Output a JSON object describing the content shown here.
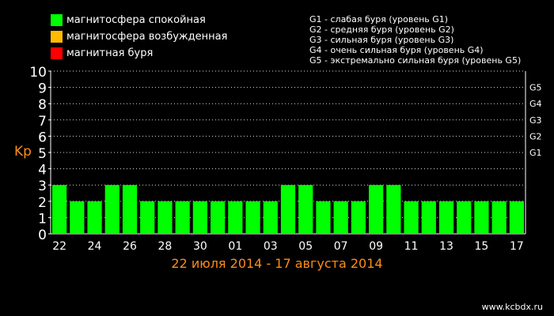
{
  "legend": {
    "items": [
      {
        "label": "магнитосфера спокойная",
        "color": "#00ff00"
      },
      {
        "label": "магнитосфера возбужденная",
        "color": "#ffbb00"
      },
      {
        "label": "магнитная буря",
        "color": "#ff0000"
      }
    ]
  },
  "storm_levels": [
    "G1 - слабая буря (уровень G1)",
    "G2 - средняя буря (уровень G2)",
    "G3 - сильная буря (уровень G3)",
    "G4 - очень сильная буря (уровень G4)",
    "G5 - экстремально сильная буря (уровень G5)"
  ],
  "watermark": "www.kcbdx.ru",
  "chart_data": {
    "type": "bar",
    "ylabel": "Kp",
    "xlabel": "22 июля 2014 - 17 августа 2014",
    "ylim": [
      0,
      10
    ],
    "y_ticks": [
      "0",
      "1",
      "2",
      "3",
      "4",
      "5",
      "6",
      "7",
      "8",
      "9",
      "10"
    ],
    "right_ticks": [
      {
        "label": "G1",
        "value": 5
      },
      {
        "label": "G2",
        "value": 6
      },
      {
        "label": "G3",
        "value": 7
      },
      {
        "label": "G4",
        "value": 8
      },
      {
        "label": "G5",
        "value": 9
      }
    ],
    "x_tick_labels": [
      "22",
      "24",
      "26",
      "28",
      "30",
      "01",
      "03",
      "05",
      "07",
      "09",
      "11",
      "13",
      "15",
      "17"
    ],
    "categories": [
      "22",
      "23",
      "24",
      "25",
      "26",
      "27",
      "28",
      "29",
      "30",
      "31",
      "01",
      "02",
      "03",
      "04",
      "05",
      "06",
      "07",
      "08",
      "09",
      "10",
      "11",
      "12",
      "13",
      "14",
      "15",
      "16",
      "17"
    ],
    "values": [
      3,
      2,
      2,
      3,
      3,
      2,
      2,
      2,
      2,
      2,
      2,
      2,
      2,
      3,
      3,
      2,
      2,
      2,
      3,
      3,
      2,
      2,
      2,
      2,
      2,
      2,
      2
    ],
    "bar_color": "#00ff00",
    "grid": true
  }
}
